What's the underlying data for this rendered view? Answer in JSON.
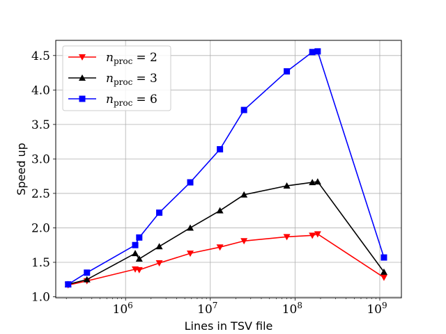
{
  "chart_data": {
    "type": "line",
    "xscale": "log",
    "xlabel": "Lines in TSV file",
    "ylabel": "Speed up",
    "xlim": [
      150000,
      1800000000
    ],
    "ylim": [
      0.985,
      4.72
    ],
    "grid": true,
    "legend_position": "top-left",
    "x_ticks": [
      {
        "value": 1000000,
        "base": "10",
        "exp": "6"
      },
      {
        "value": 10000000,
        "base": "10",
        "exp": "7"
      },
      {
        "value": 100000000,
        "base": "10",
        "exp": "8"
      },
      {
        "value": 1000000000,
        "base": "10",
        "exp": "9"
      }
    ],
    "y_ticks": [
      {
        "value": 1.0,
        "label": "1.0"
      },
      {
        "value": 1.5,
        "label": "1.5"
      },
      {
        "value": 2.0,
        "label": "2.0"
      },
      {
        "value": 2.5,
        "label": "2.5"
      },
      {
        "value": 3.0,
        "label": "3.0"
      },
      {
        "value": 3.5,
        "label": "3.5"
      },
      {
        "value": 4.0,
        "label": "4.0"
      },
      {
        "value": 4.5,
        "label": "4.5"
      }
    ],
    "series": [
      {
        "name": "n_proc = 2",
        "legend_symbol": "n",
        "legend_subscript": "proc",
        "legend_value": "= 2",
        "color": "#ff0000",
        "marker": "triangle-down",
        "x": [
          210000,
          350000,
          1300000,
          1450000,
          2500000,
          5800000,
          13000000,
          25000000,
          80000000,
          160000000,
          185000000,
          1120000000
        ],
        "y": [
          1.17,
          1.23,
          1.4,
          1.39,
          1.49,
          1.63,
          1.72,
          1.81,
          1.87,
          1.89,
          1.91,
          1.28
        ]
      },
      {
        "name": "n_proc = 3",
        "legend_symbol": "n",
        "legend_subscript": "proc",
        "legend_value": "= 3",
        "color": "#000000",
        "marker": "triangle-up",
        "x": [
          210000,
          350000,
          1300000,
          1450000,
          2500000,
          5800000,
          13000000,
          25000000,
          80000000,
          160000000,
          185000000,
          1120000000
        ],
        "y": [
          1.18,
          1.25,
          1.63,
          1.55,
          1.73,
          2.0,
          2.25,
          2.48,
          2.61,
          2.66,
          2.67,
          1.36
        ]
      },
      {
        "name": "n_proc = 6",
        "legend_symbol": "n",
        "legend_subscript": "proc",
        "legend_value": "= 6",
        "color": "#0000ff",
        "marker": "square",
        "x": [
          210000,
          350000,
          1300000,
          1450000,
          2500000,
          5800000,
          13000000,
          25000000,
          80000000,
          160000000,
          185000000,
          1120000000
        ],
        "y": [
          1.18,
          1.35,
          1.75,
          1.86,
          2.22,
          2.66,
          3.14,
          3.71,
          4.27,
          4.55,
          4.56,
          1.57
        ]
      }
    ]
  }
}
